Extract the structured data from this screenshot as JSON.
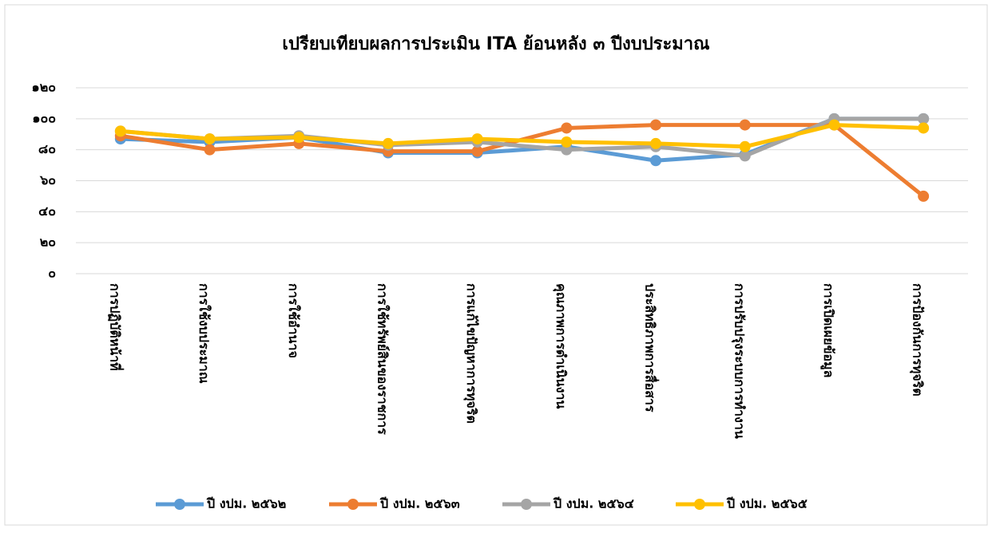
{
  "chart_data": {
    "type": "line",
    "title": "เปรียบเทียบผลการประเมิน ITA ย้อนหลัง ๓ ปีงบประมาณ",
    "categories": [
      "การปฏิบัติหน้าที่",
      "การใช้งบประมาณ",
      "การใช้อำนาจ",
      "การใช้ทรัพย์สินของราชการ",
      "การแก้ไขปัญหาการทุจริต",
      "คุณภาพการดำเนินงาน",
      "ประสิทธิภาพการสื่อสาร",
      "การปรับปรุงระบบการทำงาน",
      "การเปิดเผยข้อมูล",
      "การป้องกันการทุจริต"
    ],
    "series": [
      {
        "name": "ปี งปม. ๒๕๖๒",
        "color": "#5b9bd5",
        "values": [
          87,
          85,
          88,
          78,
          78,
          82,
          73,
          77,
          100,
          100
        ]
      },
      {
        "name": "ปี งปม. ๒๕๖๓",
        "color": "#ed7d31",
        "values": [
          89,
          80,
          84,
          79,
          79,
          94,
          96,
          96,
          96,
          50
        ]
      },
      {
        "name": "ปี งปม. ๒๕๖๔",
        "color": "#a5a5a5",
        "values": [
          92,
          87,
          89,
          83,
          85,
          80,
          82,
          76,
          100,
          100
        ]
      },
      {
        "name": "ปี งปม. ๒๕๖๕",
        "color": "#ffc000",
        "values": [
          92,
          87,
          88,
          84,
          87,
          85,
          84,
          82,
          96,
          94
        ]
      }
    ],
    "ylim": [
      0,
      120
    ],
    "yticks": [
      {
        "value": 0,
        "label": "๐"
      },
      {
        "value": 20,
        "label": "๒๐"
      },
      {
        "value": 40,
        "label": "๔๐"
      },
      {
        "value": 60,
        "label": "๖๐"
      },
      {
        "value": 80,
        "label": "๘๐"
      },
      {
        "value": 100,
        "label": "๑๐๐"
      },
      {
        "value": 120,
        "label": "๑๒๐"
      }
    ],
    "grid": true,
    "legend": "bottom"
  }
}
